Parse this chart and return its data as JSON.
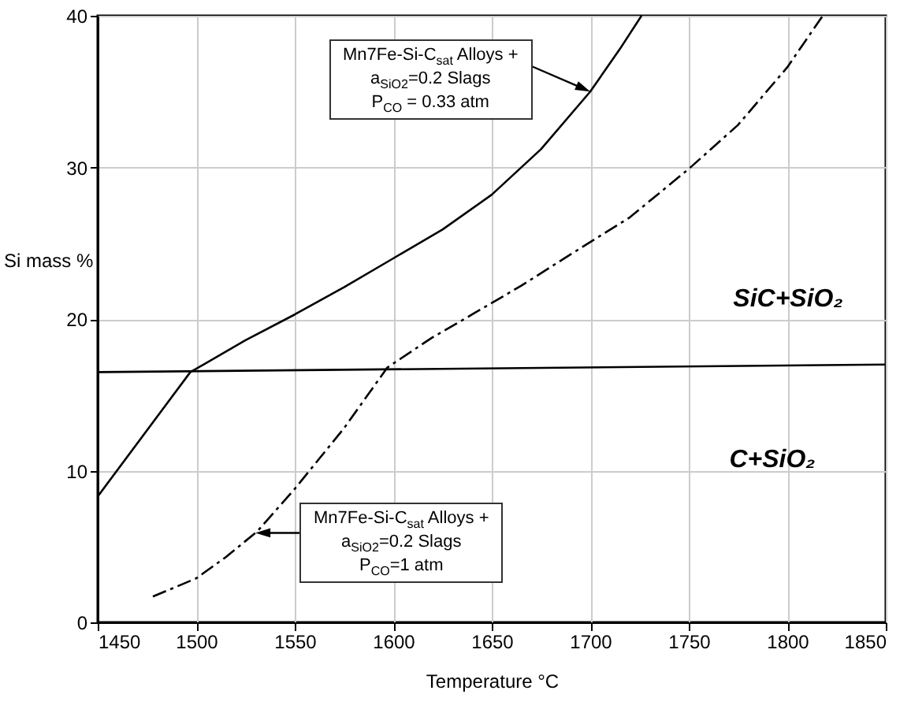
{
  "chart_data": {
    "type": "line",
    "xlabel": "Temperature °C",
    "ylabel": "Si mass %",
    "xlim": [
      1450,
      1850
    ],
    "xticks": [
      1450,
      1500,
      1550,
      1600,
      1650,
      1700,
      1750,
      1800,
      1850
    ],
    "ylim": [
      0,
      40
    ],
    "yticks": [
      0,
      10,
      20,
      30,
      40
    ],
    "grid": true,
    "marker": "none",
    "series": [
      {
        "color": "#000000",
        "line_style": "solid",
        "x": [
          1450,
          1497,
          1525,
          1550,
          1575,
          1600,
          1625,
          1650,
          1675,
          1700,
          1715,
          1726
        ],
        "values": [
          8.3,
          16.5,
          18.6,
          20.3,
          22.1,
          24.0,
          25.9,
          28.2,
          31.2,
          35.0,
          37.8,
          40
        ]
      },
      {
        "color": "#000000",
        "line_style": "dashed",
        "x": [
          1478,
          1500,
          1515,
          1531,
          1550,
          1575,
          1597,
          1620,
          1640,
          1665,
          1688,
          1720,
          1750,
          1775,
          1800,
          1818
        ],
        "values": [
          1.7,
          2.9,
          4.3,
          6.0,
          8.8,
          12.8,
          16.8,
          18.8,
          20.3,
          22.2,
          24.1,
          26.7,
          29.9,
          32.8,
          36.6,
          40
        ]
      },
      {
        "color": "#000000",
        "line_style": "solid",
        "x": [
          1450,
          1850
        ],
        "values": [
          16.5,
          17.0
        ]
      }
    ],
    "annotations": [
      {
        "text": "Mn7Fe-Si-C$_{sat}$ Alloys +",
        "x": 1700,
        "y": 35.0
      },
      "a$_{SiO2}$=0.2 Slags",
      "P$_{CO}$ = 0.33 atm",
      {
        "text": "Mn7Fe-Si-C$_{sat}$ Alloys +",
        "x": 1530,
        "y": 5.9
      },
      "a$_{SiO2}$=0.2 Slags",
      "P$_{CO}$=1 atm",
      "SiC+SiO₂",
      "C+SiO₂"
    ]
  }
}
